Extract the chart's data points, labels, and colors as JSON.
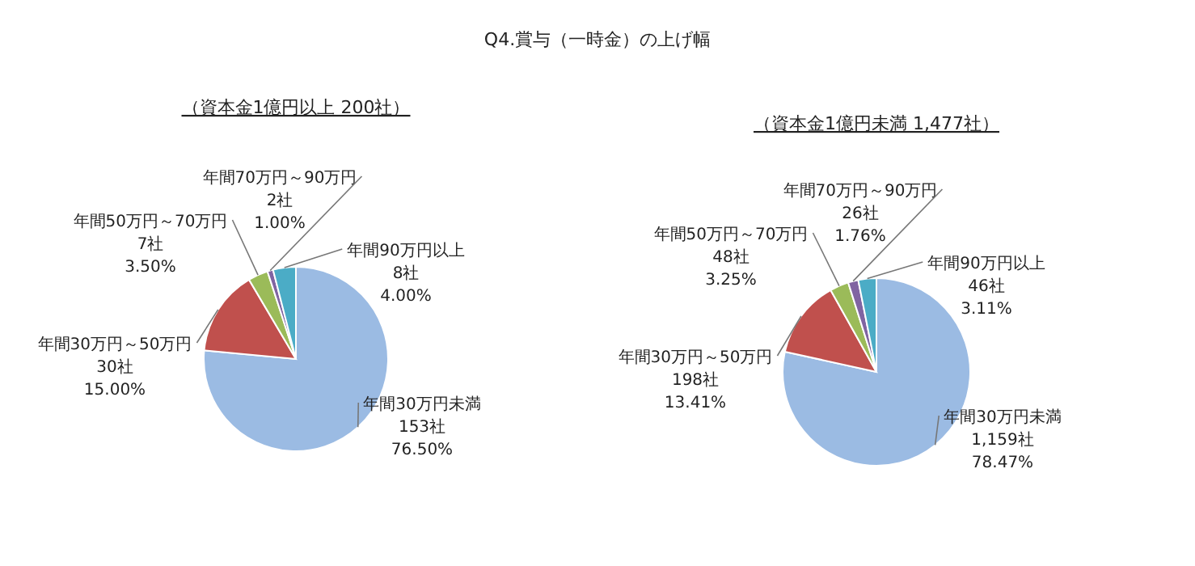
{
  "chart_data": [
    {
      "type": "pie",
      "title": "Q4.賞与（一時金）の上げ幅",
      "subtitle": "（資本金1億円以上 200社）",
      "categories": [
        "年間30万円未満",
        "年間30万円～50万円",
        "年間50万円～70万円",
        "年間70万円～90万円",
        "年間90万円以上"
      ],
      "values": [
        153,
        30,
        7,
        2,
        8
      ],
      "value_labels": [
        "153社\n76.50%",
        "30社\n15.00%",
        "7社\n3.50%",
        "2社\n1.00%",
        "8社\n4.00%"
      ],
      "colors": [
        "#9bbbe3",
        "#c0504d",
        "#9bbb59",
        "#8064a2",
        "#4bacc6"
      ]
    },
    {
      "type": "pie",
      "subtitle": "（資本金1億円未満 1,477社）",
      "categories": [
        "年間30万円未満",
        "年間30万円～50万円",
        "年間50万円～70万円",
        "年間70万円～90万円",
        "年間90万円以上"
      ],
      "values": [
        1159,
        198,
        48,
        26,
        46
      ],
      "value_labels": [
        "1,159社\n78.47%",
        "198社\n13.41%",
        "48社\n3.25%",
        "26社\n1.76%",
        "46社\n3.11%"
      ],
      "colors": [
        "#9bbbe3",
        "#c0504d",
        "#9bbb59",
        "#8064a2",
        "#4bacc6"
      ]
    }
  ]
}
